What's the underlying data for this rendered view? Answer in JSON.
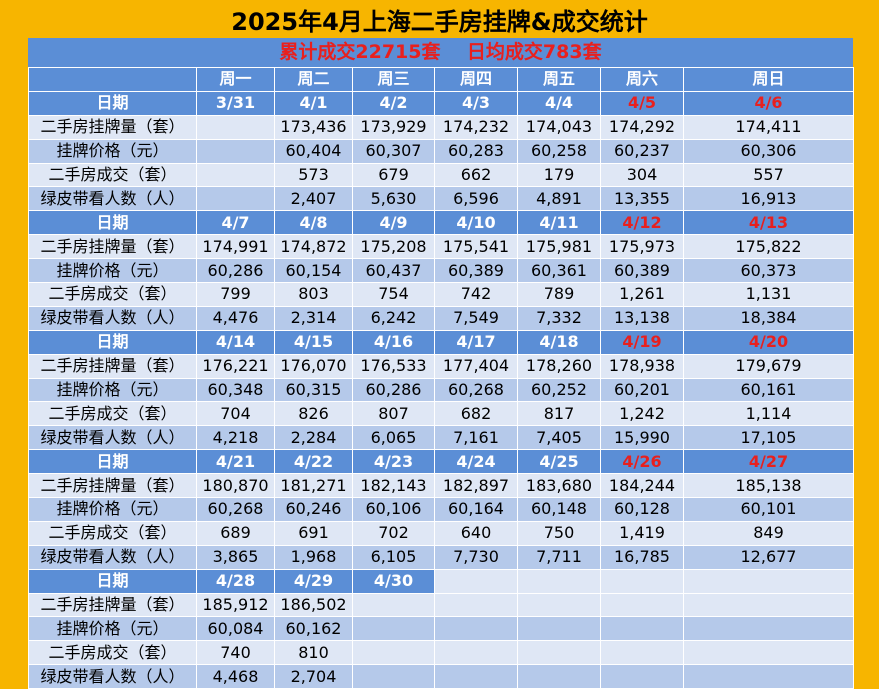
{
  "title": "2025年4月上海二手房挂牌&成交统计",
  "summary": "累计成交22715套    日均成交783套",
  "weekdays": [
    "",
    "周一",
    "周二",
    "周三",
    "周四",
    "周五",
    "周六",
    "周日"
  ],
  "date_label": "日期",
  "row_labels": [
    "二手房挂牌量（套）",
    "挂牌价格（元）",
    "二手房成交（套）",
    "绿皮带看人数（人）"
  ],
  "weeks": [
    {
      "dates": [
        "3/31",
        "4/1",
        "4/2",
        "4/3",
        "4/4",
        "4/5",
        "4/6"
      ],
      "rows": [
        [
          "",
          "173,436",
          "173,929",
          "174,232",
          "174,043",
          "174,292",
          "174,411"
        ],
        [
          "",
          "60,404",
          "60,307",
          "60,283",
          "60,258",
          "60,237",
          "60,306"
        ],
        [
          "",
          "573",
          "679",
          "662",
          "179",
          "304",
          "557"
        ],
        [
          "",
          "2,407",
          "5,630",
          "6,596",
          "4,891",
          "13,355",
          "16,913"
        ]
      ]
    },
    {
      "dates": [
        "4/7",
        "4/8",
        "4/9",
        "4/10",
        "4/11",
        "4/12",
        "4/13"
      ],
      "rows": [
        [
          "174,991",
          "174,872",
          "175,208",
          "175,541",
          "175,981",
          "175,973",
          "175,822"
        ],
        [
          "60,286",
          "60,154",
          "60,437",
          "60,389",
          "60,361",
          "60,389",
          "60,373"
        ],
        [
          "799",
          "803",
          "754",
          "742",
          "789",
          "1,261",
          "1,131"
        ],
        [
          "4,476",
          "2,314",
          "6,242",
          "7,549",
          "7,332",
          "13,138",
          "18,384"
        ]
      ]
    },
    {
      "dates": [
        "4/14",
        "4/15",
        "4/16",
        "4/17",
        "4/18",
        "4/19",
        "4/20"
      ],
      "rows": [
        [
          "176,221",
          "176,070",
          "176,533",
          "177,404",
          "178,260",
          "178,938",
          "179,679"
        ],
        [
          "60,348",
          "60,315",
          "60,286",
          "60,268",
          "60,252",
          "60,201",
          "60,161"
        ],
        [
          "704",
          "826",
          "807",
          "682",
          "817",
          "1,242",
          "1,114"
        ],
        [
          "4,218",
          "2,284",
          "6,065",
          "7,161",
          "7,405",
          "15,990",
          "17,105"
        ]
      ]
    },
    {
      "dates": [
        "4/21",
        "4/22",
        "4/23",
        "4/24",
        "4/25",
        "4/26",
        "4/27"
      ],
      "rows": [
        [
          "180,870",
          "181,271",
          "182,143",
          "182,897",
          "183,680",
          "184,244",
          "185,138"
        ],
        [
          "60,268",
          "60,246",
          "60,106",
          "60,164",
          "60,148",
          "60,128",
          "60,101"
        ],
        [
          "689",
          "691",
          "702",
          "640",
          "750",
          "1,419",
          "849"
        ],
        [
          "3,865",
          "1,968",
          "6,105",
          "7,730",
          "7,711",
          "16,785",
          "12,677"
        ]
      ]
    },
    {
      "dates": [
        "4/28",
        "4/29",
        "4/30",
        "",
        "",
        "",
        ""
      ],
      "rows": [
        [
          "185,912",
          "186,502",
          "",
          "",
          "",
          "",
          ""
        ],
        [
          "60,084",
          "60,162",
          "",
          "",
          "",
          "",
          ""
        ],
        [
          "740",
          "810",
          "",
          "",
          "",
          "",
          ""
        ],
        [
          "4,468",
          "2,704",
          "",
          "",
          "",
          "",
          ""
        ]
      ]
    }
  ],
  "colors": {
    "background": "#f7b500",
    "header": "#5b8ed6",
    "row_light": "#dfe7f5",
    "row_mid": "#b5c9ea",
    "weekend_red": "#e8201e"
  }
}
